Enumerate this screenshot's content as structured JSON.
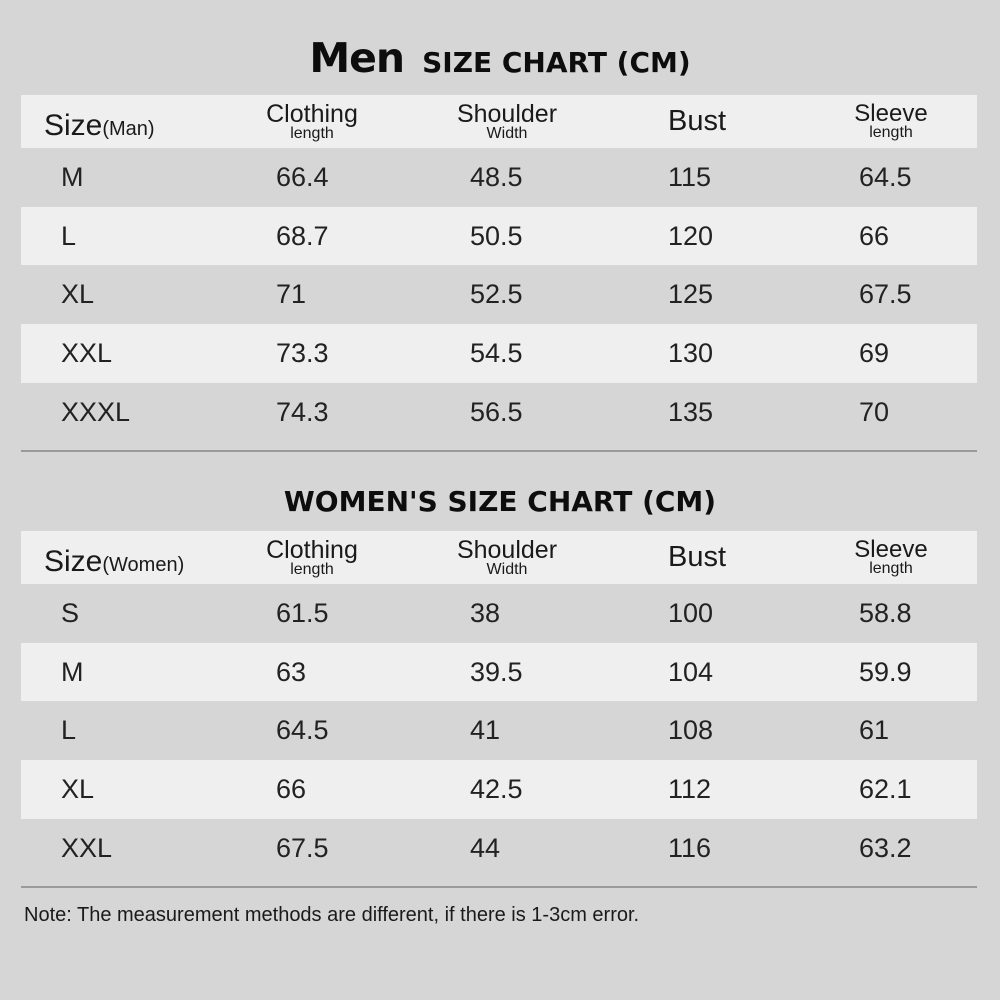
{
  "men": {
    "title_big": "Men",
    "title_small": "SIZE CHART (CM)",
    "header": {
      "size": "Size",
      "size_sub": "(Man)",
      "clothing": "Clothing",
      "clothing_sub": "length",
      "shoulder": "Shoulder",
      "shoulder_sub": "Width",
      "bust": "Bust",
      "sleeve": "Sleeve",
      "sleeve_sub": "length"
    },
    "rows": [
      [
        "M",
        "66.4",
        "48.5",
        "115",
        "64.5"
      ],
      [
        "L",
        "68.7",
        "50.5",
        "120",
        "66"
      ],
      [
        "XL",
        "71",
        "52.5",
        "125",
        "67.5"
      ],
      [
        "XXL",
        "73.3",
        "54.5",
        "130",
        "69"
      ],
      [
        "XXXL",
        "74.3",
        "56.5",
        "135",
        "70"
      ]
    ]
  },
  "women": {
    "title": "WOMEN'S SIZE CHART (CM)",
    "header": {
      "size": "Size",
      "size_sub": "(Women)",
      "clothing": "Clothing",
      "clothing_sub": "length",
      "shoulder": "Shoulder",
      "shoulder_sub": "Width",
      "bust": "Bust",
      "sleeve": "Sleeve",
      "sleeve_sub": "length"
    },
    "rows": [
      [
        "S",
        "61.5",
        "38",
        "100",
        "58.8"
      ],
      [
        "M",
        "63",
        "39.5",
        "104",
        "59.9"
      ],
      [
        "L",
        "64.5",
        "41",
        "108",
        "61"
      ],
      [
        "XL",
        "66",
        "42.5",
        "112",
        "62.1"
      ],
      [
        "XXL",
        "67.5",
        "44",
        "116",
        "63.2"
      ]
    ]
  },
  "note": "Note: The measurement methods are different, if there is 1-3cm error.",
  "colors": {
    "background": "#d6d6d6",
    "band": "#efefef",
    "divider": "#9a9a9a",
    "text": "#1a1a1a"
  }
}
